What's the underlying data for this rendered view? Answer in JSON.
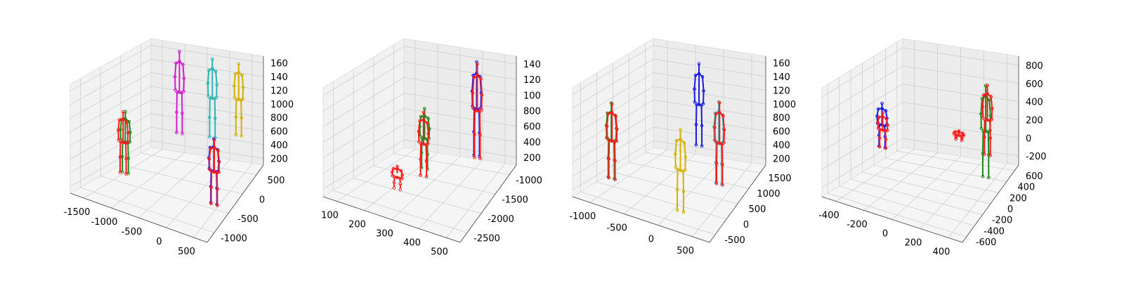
{
  "chart_data": [
    {
      "type": "scatter",
      "subtype": "3d-skeleton-poses",
      "panel": 1,
      "x_ticks": [
        "-1500",
        "-1000",
        "-500",
        "0",
        "500"
      ],
      "y_ticks": [
        "500",
        "0",
        "-500",
        "-1000"
      ],
      "z_ticks": [
        "200",
        "400",
        "600",
        "800",
        "1000",
        "1200",
        "1400",
        "1600"
      ],
      "z_ticks_display": [
        "200",
        "400",
        "600",
        "800",
        "1000",
        "120",
        "140",
        "160"
      ],
      "xlim": [
        -1700,
        700
      ],
      "ylim": [
        -1200,
        800
      ],
      "zlim": [
        100,
        1700
      ],
      "grid": true,
      "skeletons": [
        {
          "color": "#1a8a1a",
          "style": "solid",
          "x": -1380,
          "y": -250,
          "zmin": 150,
          "zmax": 1050
        },
        {
          "color": "#ff1a1a",
          "style": "solid",
          "x": -1400,
          "y": -280,
          "zmin": 150,
          "zmax": 1050
        },
        {
          "color": "#d11bd1",
          "style": "solid",
          "x": -900,
          "y": 550,
          "zmin": 500,
          "zmax": 1700
        },
        {
          "color": "#2bb5b5",
          "style": "solid",
          "x": -250,
          "y": 600,
          "zmin": 500,
          "zmax": 1650
        },
        {
          "color": "#d4b000",
          "style": "solid",
          "x": 300,
          "y": 600,
          "zmin": 600,
          "zmax": 1650
        },
        {
          "color": "#1a1ae6",
          "style": "solid",
          "x": 400,
          "y": -400,
          "zmin": 150,
          "zmax": 1100
        },
        {
          "color": "#ff1a1a",
          "style": "solid",
          "x": 420,
          "y": -420,
          "zmin": 150,
          "zmax": 1100
        }
      ]
    },
    {
      "type": "scatter",
      "subtype": "3d-skeleton-poses",
      "panel": 2,
      "x_ticks": [
        "100",
        "200",
        "300",
        "400",
        "500"
      ],
      "y_ticks": [
        "-1000",
        "-1500",
        "-2000",
        "-2500"
      ],
      "z_ticks": [
        "200",
        "400",
        "600",
        "800",
        "1000",
        "1200",
        "1400"
      ],
      "z_ticks_display": [
        "200",
        "400",
        "600",
        "800",
        "100",
        "120",
        "140"
      ],
      "xlim": [
        40,
        560
      ],
      "ylim": [
        -2700,
        -700
      ],
      "zlim": [
        100,
        1550
      ],
      "grid": true,
      "skeletons": [
        {
          "color": "#1a8a1a",
          "style": "solid",
          "x": 280,
          "y": -1600,
          "zmin": 300,
          "zmax": 1100
        },
        {
          "color": "#ff1a1a",
          "style": "solid",
          "x": 290,
          "y": -1700,
          "zmin": 250,
          "zmax": 1100
        },
        {
          "color": "#ff1a1a",
          "style": "dashed",
          "x": 240,
          "y": -2100,
          "zmin": 200,
          "zmax": 500
        },
        {
          "color": "#1a1ae6",
          "style": "solid",
          "x": 420,
          "y": -1000,
          "zmin": 300,
          "zmax": 1550
        },
        {
          "color": "#ff1a1a",
          "style": "solid",
          "x": 430,
          "y": -1050,
          "zmin": 300,
          "zmax": 1550
        }
      ]
    },
    {
      "type": "scatter",
      "subtype": "3d-skeleton-poses",
      "panel": 3,
      "x_ticks": [
        "-1000",
        "-500",
        "0",
        "500"
      ],
      "y_ticks": [
        "1500",
        "1000",
        "500",
        "0",
        "-500"
      ],
      "z_ticks": [
        "200",
        "400",
        "600",
        "800",
        "1000",
        "1200",
        "1400",
        "1600"
      ],
      "z_ticks_display": [
        "200",
        "400",
        "600",
        "800",
        "1000",
        "120",
        "140",
        "160"
      ],
      "xlim": [
        -1200,
        800
      ],
      "ylim": [
        -800,
        1700
      ],
      "zlim": [
        100,
        1700
      ],
      "grid": true,
      "skeletons": [
        {
          "color": "#1a8a1a",
          "style": "solid",
          "x": -1000,
          "y": 0,
          "zmin": 200,
          "zmax": 1300
        },
        {
          "color": "#ff1a1a",
          "style": "solid",
          "x": -980,
          "y": -20,
          "zmin": 200,
          "zmax": 1300
        },
        {
          "color": "#1a1ae6",
          "style": "solid",
          "x": -100,
          "y": 1100,
          "zmin": 500,
          "zmax": 1700
        },
        {
          "color": "#2bb5b5",
          "style": "solid",
          "x": 400,
          "y": 700,
          "zmin": 200,
          "zmax": 1400
        },
        {
          "color": "#ff1a1a",
          "style": "solid",
          "x": 420,
          "y": 680,
          "zmin": 200,
          "zmax": 1400
        },
        {
          "color": "#d4b000",
          "style": "solid",
          "x": 150,
          "y": -200,
          "zmin": 100,
          "zmax": 1300
        }
      ]
    },
    {
      "type": "scatter",
      "subtype": "3d-skeleton-poses",
      "panel": 4,
      "x_ticks": [
        "-400",
        "-200",
        "0",
        "200",
        "400"
      ],
      "y_ticks": [
        "600",
        "400",
        "200",
        "0",
        "-200",
        "-400",
        "-600"
      ],
      "z_ticks": [
        "-200",
        "0",
        "200",
        "400",
        "600",
        "800"
      ],
      "z_ticks_display": [
        "-200",
        "0",
        "200",
        "400",
        "600",
        "800"
      ],
      "xlim": [
        -500,
        500
      ],
      "ylim": [
        -650,
        700
      ],
      "zlim": [
        -300,
        950
      ],
      "grid": true,
      "skeletons": [
        {
          "color": "#1a1ae6",
          "style": "solid",
          "x": -380,
          "y": 100,
          "zmin": 0,
          "zmax": 500
        },
        {
          "color": "#ff1a1a",
          "style": "solid",
          "x": -370,
          "y": 90,
          "zmin": 0,
          "zmax": 400
        },
        {
          "color": "#1a8a1a",
          "style": "solid",
          "x": 350,
          "y": 350,
          "zmin": -250,
          "zmax": 800
        },
        {
          "color": "#ff1a1a",
          "style": "solid",
          "x": 360,
          "y": 360,
          "zmin": 0,
          "zmax": 800
        },
        {
          "color": "#ff1a1a",
          "style": "dashed",
          "x": 150,
          "y": 300,
          "zmin": 150,
          "zmax": 250
        }
      ]
    }
  ]
}
